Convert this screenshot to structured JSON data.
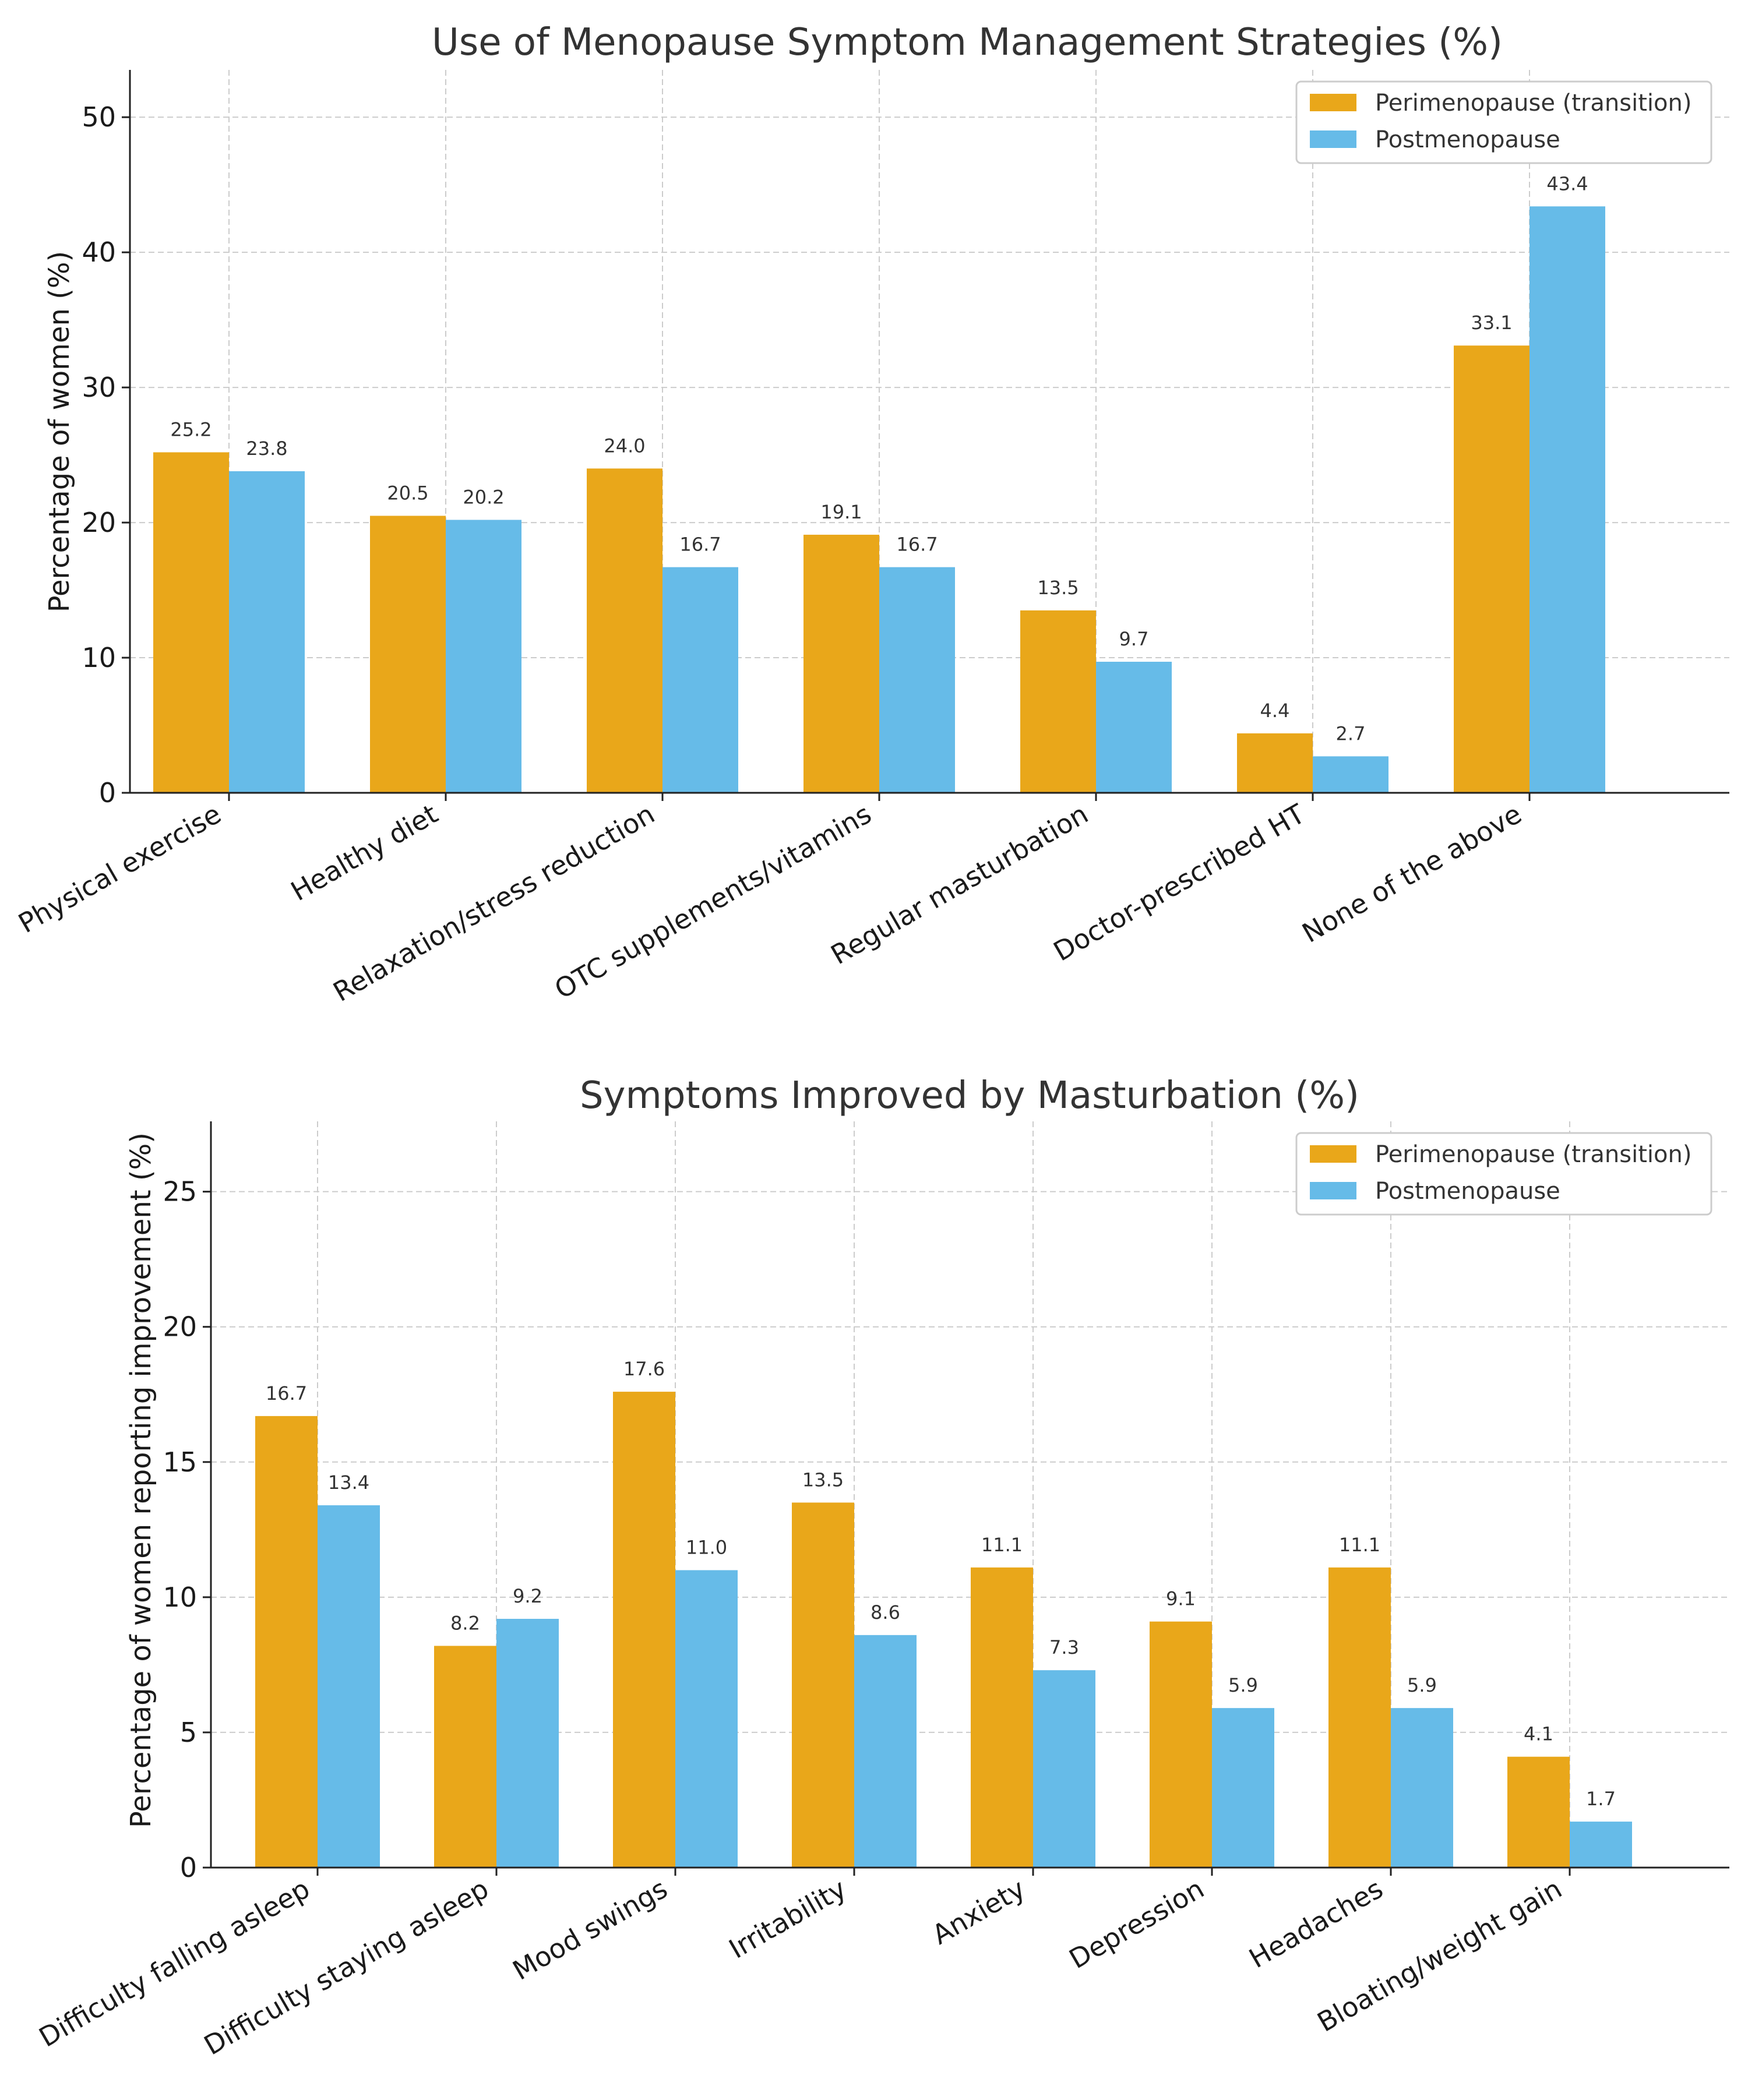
{
  "colors": {
    "perimenopause": "#E9A71A",
    "postmenopause": "#66BBE8",
    "grid": "#cccccc",
    "text": "#333333"
  },
  "chart_data": [
    {
      "type": "bar",
      "title": "Use of Menopause Symptom Management Strategies (%)",
      "xlabel": "",
      "ylabel": "Percentage of women (%)",
      "ylim": [
        0,
        53.5
      ],
      "yticks": [
        0,
        10,
        20,
        30,
        40,
        50
      ],
      "grid": true,
      "legend": "top-right",
      "categories": [
        "Physical exercise",
        "Healthy diet",
        "Relaxation/stress reduction",
        "OTC supplements/vitamins",
        "Regular masturbation",
        "Doctor-prescribed HT",
        "None of the above"
      ],
      "series": [
        {
          "name": "Perimenopause (transition)",
          "values": [
            25.2,
            20.5,
            24.0,
            19.1,
            13.5,
            4.4,
            33.1
          ],
          "labels": [
            "25.2",
            "20.5",
            "24.0",
            "19.1",
            "13.5",
            "4.4",
            "33.1"
          ]
        },
        {
          "name": "Postmenopause",
          "values": [
            23.8,
            20.2,
            16.7,
            16.7,
            9.7,
            2.7,
            43.4
          ],
          "labels": [
            "23.8",
            "20.2",
            "16.7",
            "16.7",
            "9.7",
            "2.7",
            "43.4"
          ]
        }
      ]
    },
    {
      "type": "bar",
      "title": "Symptoms Improved by Masturbation (%)",
      "xlabel": "",
      "ylabel": "Percentage of women reporting improvement (%)",
      "ylim": [
        0,
        27.6
      ],
      "yticks": [
        0,
        5,
        10,
        15,
        20,
        25
      ],
      "grid": true,
      "legend": "top-right",
      "categories": [
        "Difficulty falling asleep",
        "Difficulty staying asleep",
        "Mood swings",
        "Irritability",
        "Anxiety",
        "Depression",
        "Headaches",
        "Bloating/weight gain"
      ],
      "series": [
        {
          "name": "Perimenopause (transition)",
          "values": [
            16.7,
            8.2,
            17.6,
            13.5,
            11.1,
            9.1,
            11.1,
            4.1
          ],
          "labels": [
            "16.7",
            "8.2",
            "17.6",
            "13.5",
            "11.1",
            "9.1",
            "11.1",
            "4.1"
          ]
        },
        {
          "name": "Postmenopause",
          "values": [
            13.4,
            9.2,
            11.0,
            8.6,
            7.3,
            5.9,
            5.9,
            1.7
          ],
          "labels": [
            "13.4",
            "9.2",
            "11.0",
            "8.6",
            "7.3",
            "5.9",
            "5.9",
            "1.7"
          ]
        }
      ]
    }
  ]
}
